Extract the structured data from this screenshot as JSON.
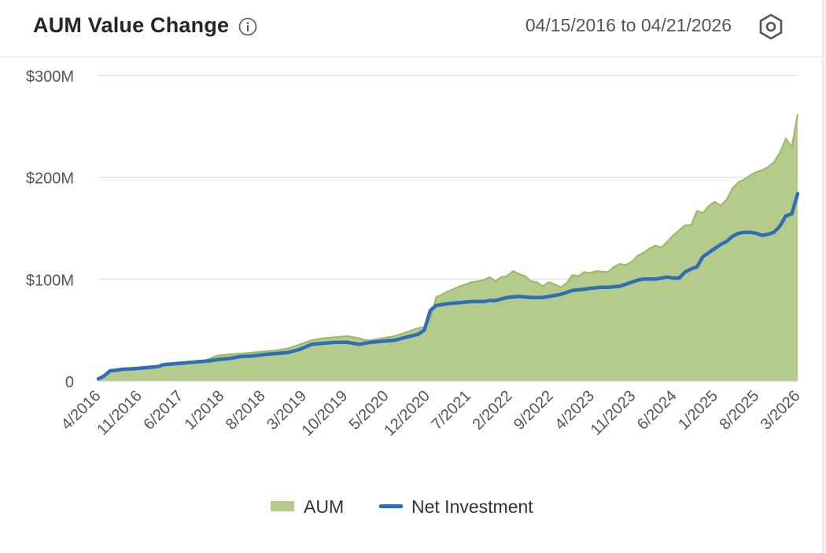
{
  "header": {
    "title": "AUM Value Change",
    "date_range": "04/15/2016 to 04/21/2026",
    "info_icon": "info-circle-icon",
    "settings_icon": "hexagon-settings-icon"
  },
  "colors": {
    "aum": "#b5cb8b",
    "aum_line": "#9bb865",
    "net": "#2f6db5",
    "grid": "#dddddd"
  },
  "chart_data": {
    "type": "area",
    "title": "AUM Value Change",
    "ylim": [
      0,
      300
    ],
    "yticks": [
      0,
      100,
      200,
      300
    ],
    "ytick_labels": [
      "0",
      "$100M",
      "$200M",
      "$300M"
    ],
    "xticks": [
      "4/2016",
      "11/2016",
      "6/2017",
      "1/2018",
      "8/2018",
      "3/2019",
      "10/2019",
      "5/2020",
      "12/2020",
      "7/2021",
      "2/2022",
      "9/2022",
      "4/2023",
      "11/2023",
      "6/2024",
      "1/2025",
      "8/2025",
      "3/2026"
    ],
    "legend": {
      "position": "bottom-center",
      "entries": [
        "AUM",
        "Net Investment"
      ]
    },
    "grid": true,
    "series": [
      {
        "name": "AUM",
        "kind": "area",
        "values": [
          [
            0,
            3
          ],
          [
            1,
            5
          ],
          [
            2,
            10
          ],
          [
            3,
            11
          ],
          [
            4,
            12
          ],
          [
            5,
            12.5
          ],
          [
            7,
            13
          ],
          [
            8,
            14
          ],
          [
            10,
            15
          ],
          [
            12,
            17
          ],
          [
            14,
            18
          ],
          [
            16,
            19
          ],
          [
            18,
            20
          ],
          [
            20,
            25
          ],
          [
            22,
            26
          ],
          [
            24,
            27
          ],
          [
            26,
            28
          ],
          [
            28,
            29
          ],
          [
            30,
            30
          ],
          [
            32,
            32
          ],
          [
            34,
            36
          ],
          [
            36,
            40
          ],
          [
            38,
            42
          ],
          [
            40,
            43
          ],
          [
            42,
            44
          ],
          [
            44,
            42
          ],
          [
            45,
            40
          ],
          [
            46,
            40
          ],
          [
            48,
            42
          ],
          [
            50,
            44
          ],
          [
            52,
            48
          ],
          [
            54,
            52
          ],
          [
            55,
            53
          ],
          [
            56,
            60
          ],
          [
            57,
            82
          ],
          [
            59,
            88
          ],
          [
            61,
            93
          ],
          [
            63,
            97
          ],
          [
            65,
            99
          ],
          [
            66,
            102
          ],
          [
            67,
            98
          ],
          [
            68,
            102
          ],
          [
            69,
            103
          ],
          [
            70,
            108
          ],
          [
            71,
            105
          ],
          [
            72,
            103
          ],
          [
            73,
            98
          ],
          [
            74,
            97
          ],
          [
            75,
            93
          ],
          [
            76,
            97
          ],
          [
            77,
            95
          ],
          [
            78,
            92
          ],
          [
            79,
            96
          ],
          [
            80,
            104
          ],
          [
            81,
            103
          ],
          [
            82,
            107
          ],
          [
            83,
            106
          ],
          [
            84,
            108
          ],
          [
            86,
            107
          ],
          [
            87,
            112
          ],
          [
            88,
            115
          ],
          [
            89,
            114
          ],
          [
            90,
            117
          ],
          [
            91,
            123
          ],
          [
            92,
            126
          ],
          [
            93,
            130
          ],
          [
            94,
            133
          ],
          [
            95,
            131
          ],
          [
            96,
            137
          ],
          [
            97,
            143
          ],
          [
            98,
            148
          ],
          [
            99,
            153
          ],
          [
            100,
            153
          ],
          [
            101,
            167
          ],
          [
            102,
            165
          ],
          [
            103,
            172
          ],
          [
            104,
            176
          ],
          [
            105,
            172
          ],
          [
            106,
            178
          ],
          [
            107,
            189
          ],
          [
            108,
            195
          ],
          [
            109,
            198
          ],
          [
            110,
            202
          ],
          [
            111,
            205
          ],
          [
            112,
            207
          ],
          [
            113,
            210
          ],
          [
            114,
            215
          ],
          [
            115,
            224
          ],
          [
            116,
            238
          ],
          [
            117,
            230
          ],
          [
            118,
            262
          ]
        ]
      },
      {
        "name": "Net Investment",
        "kind": "line",
        "values": [
          [
            0,
            2
          ],
          [
            1,
            5
          ],
          [
            2,
            10
          ],
          [
            3,
            10.5
          ],
          [
            4,
            11.5
          ],
          [
            6,
            12
          ],
          [
            8,
            13
          ],
          [
            10,
            14
          ],
          [
            11,
            16
          ],
          [
            13,
            17
          ],
          [
            15,
            18
          ],
          [
            17,
            19
          ],
          [
            19,
            20
          ],
          [
            20,
            21
          ],
          [
            22,
            22
          ],
          [
            24,
            24
          ],
          [
            26,
            24.5
          ],
          [
            28,
            26
          ],
          [
            30,
            27
          ],
          [
            32,
            28
          ],
          [
            34,
            31
          ],
          [
            36,
            36
          ],
          [
            38,
            37
          ],
          [
            40,
            38
          ],
          [
            42,
            38
          ],
          [
            43,
            37
          ],
          [
            44,
            36
          ],
          [
            46,
            38
          ],
          [
            48,
            39
          ],
          [
            50,
            40
          ],
          [
            52,
            43
          ],
          [
            54,
            46
          ],
          [
            55,
            50
          ],
          [
            56,
            69
          ],
          [
            57,
            74
          ],
          [
            59,
            76
          ],
          [
            61,
            77
          ],
          [
            63,
            78
          ],
          [
            65,
            78
          ],
          [
            66,
            79
          ],
          [
            67,
            79
          ],
          [
            69,
            82
          ],
          [
            71,
            83
          ],
          [
            73,
            82
          ],
          [
            74,
            82
          ],
          [
            75,
            82
          ],
          [
            76,
            83
          ],
          [
            77,
            84
          ],
          [
            78,
            85
          ],
          [
            79,
            87
          ],
          [
            80,
            89
          ],
          [
            82,
            90
          ],
          [
            83,
            91
          ],
          [
            85,
            92
          ],
          [
            86,
            92
          ],
          [
            88,
            93
          ],
          [
            90,
            97
          ],
          [
            91,
            99
          ],
          [
            92,
            100
          ],
          [
            93,
            100
          ],
          [
            94,
            100
          ],
          [
            95,
            101
          ],
          [
            96,
            102
          ],
          [
            97,
            101
          ],
          [
            98,
            101
          ],
          [
            99,
            107
          ],
          [
            100,
            110
          ],
          [
            101,
            112
          ],
          [
            102,
            122
          ],
          [
            103,
            126
          ],
          [
            104,
            130
          ],
          [
            105,
            134
          ],
          [
            106,
            137
          ],
          [
            107,
            142
          ],
          [
            108,
            145
          ],
          [
            109,
            146
          ],
          [
            110,
            146
          ],
          [
            111,
            145
          ],
          [
            112,
            143
          ],
          [
            113,
            144
          ],
          [
            114,
            146
          ],
          [
            115,
            152
          ],
          [
            116,
            162
          ],
          [
            117,
            164
          ],
          [
            118,
            184
          ]
        ]
      }
    ]
  }
}
